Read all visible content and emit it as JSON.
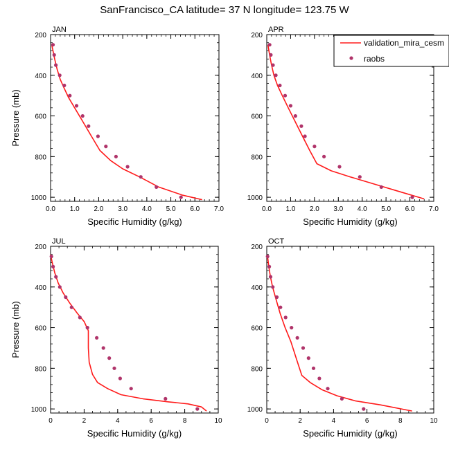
{
  "figure_title": "SanFrancisco_CA  latitude= 37 N longitude= 123.75 W",
  "colors": {
    "model": "#ff1a1a",
    "obs": "#b0346a",
    "axis": "#000000"
  },
  "legend": {
    "placement": "top-right of APR panel",
    "model_label": "validation_mira_cesm",
    "obs_label": "raobs"
  },
  "chart_data": [
    {
      "type": "line",
      "title": "JAN",
      "xlabel": "Specific Humidity (g/kg)",
      "ylabel": "Pressure (mb)",
      "xlim": [
        0,
        7
      ],
      "ylim": [
        1020,
        200
      ],
      "y_inverted": true,
      "xticks": [
        "0.0",
        "1.0",
        "2.0",
        "3.0",
        "4.0",
        "5.0",
        "6.0",
        "7.0"
      ],
      "yticks": [
        "200",
        "400",
        "600",
        "800",
        "1000"
      ],
      "series": [
        {
          "name": "validation_mira_cesm",
          "style": "line",
          "points": [
            [
              0.05,
              250
            ],
            [
              0.1,
              280
            ],
            [
              0.17,
              320
            ],
            [
              0.27,
              370
            ],
            [
              0.4,
              420
            ],
            [
              0.55,
              460
            ],
            [
              0.75,
              510
            ],
            [
              1.05,
              570
            ],
            [
              1.35,
              630
            ],
            [
              1.7,
              700
            ],
            [
              2.05,
              770
            ],
            [
              2.5,
              820
            ],
            [
              3.0,
              860
            ],
            [
              3.7,
              900
            ],
            [
              4.5,
              950
            ],
            [
              5.5,
              990
            ],
            [
              6.3,
              1012
            ]
          ]
        },
        {
          "name": "raobs",
          "style": "markers",
          "points": [
            [
              0.1,
              250
            ],
            [
              0.15,
              300
            ],
            [
              0.22,
              350
            ],
            [
              0.38,
              400
            ],
            [
              0.57,
              450
            ],
            [
              0.8,
              500
            ],
            [
              1.08,
              550
            ],
            [
              1.33,
              600
            ],
            [
              1.58,
              650
            ],
            [
              1.97,
              700
            ],
            [
              2.3,
              750
            ],
            [
              2.72,
              800
            ],
            [
              3.2,
              850
            ],
            [
              3.75,
              900
            ],
            [
              4.4,
              950
            ],
            [
              5.42,
              1000
            ]
          ]
        }
      ]
    },
    {
      "type": "line",
      "title": "APR",
      "xlabel": "Specific Humidity (g/kg)",
      "ylabel": "",
      "xlim": [
        0,
        7
      ],
      "ylim": [
        1020,
        200
      ],
      "y_inverted": true,
      "xticks": [
        "0.0",
        "1.0",
        "2.0",
        "3.0",
        "4.0",
        "5.0",
        "6.0",
        "7.0"
      ],
      "yticks": [
        "200",
        "400",
        "600",
        "800",
        "1000"
      ],
      "series": [
        {
          "name": "validation_mira_cesm",
          "style": "line",
          "points": [
            [
              0.05,
              250
            ],
            [
              0.12,
              300
            ],
            [
              0.2,
              350
            ],
            [
              0.3,
              400
            ],
            [
              0.45,
              450
            ],
            [
              0.65,
              500
            ],
            [
              0.9,
              560
            ],
            [
              1.2,
              630
            ],
            [
              1.5,
              700
            ],
            [
              1.8,
              770
            ],
            [
              2.1,
              835
            ],
            [
              2.7,
              870
            ],
            [
              3.5,
              900
            ],
            [
              4.5,
              935
            ],
            [
              5.5,
              970
            ],
            [
              6.6,
              1008
            ]
          ]
        },
        {
          "name": "raobs",
          "style": "markers",
          "points": [
            [
              0.12,
              250
            ],
            [
              0.17,
              300
            ],
            [
              0.26,
              350
            ],
            [
              0.38,
              400
            ],
            [
              0.55,
              450
            ],
            [
              0.77,
              500
            ],
            [
              1.0,
              550
            ],
            [
              1.2,
              600
            ],
            [
              1.45,
              650
            ],
            [
              1.6,
              700
            ],
            [
              2.0,
              750
            ],
            [
              2.4,
              800
            ],
            [
              3.05,
              850
            ],
            [
              3.9,
              900
            ],
            [
              4.8,
              950
            ],
            [
              6.1,
              1000
            ]
          ]
        }
      ]
    },
    {
      "type": "line",
      "title": "JUL",
      "xlabel": "Specific Humidity (g/kg)",
      "ylabel": "Pressure (mb)",
      "xlim": [
        0,
        10
      ],
      "ylim": [
        1020,
        200
      ],
      "y_inverted": true,
      "xticks": [
        "0",
        "2",
        "4",
        "6",
        "8",
        "10"
      ],
      "yticks": [
        "200",
        "400",
        "600",
        "800",
        "1000"
      ],
      "series": [
        {
          "name": "validation_mira_cesm",
          "style": "line",
          "points": [
            [
              0.0,
              240
            ],
            [
              0.1,
              280
            ],
            [
              0.25,
              330
            ],
            [
              0.45,
              380
            ],
            [
              0.75,
              430
            ],
            [
              1.15,
              480
            ],
            [
              1.6,
              530
            ],
            [
              2.0,
              570
            ],
            [
              2.25,
              615
            ],
            [
              2.25,
              700
            ],
            [
              2.3,
              770
            ],
            [
              2.5,
              830
            ],
            [
              2.8,
              870
            ],
            [
              3.4,
              900
            ],
            [
              4.2,
              930
            ],
            [
              5.5,
              950
            ],
            [
              7.0,
              965
            ],
            [
              8.2,
              975
            ],
            [
              9.0,
              990
            ],
            [
              9.3,
              1010
            ]
          ]
        },
        {
          "name": "raobs",
          "style": "markers",
          "points": [
            [
              0.05,
              250
            ],
            [
              0.15,
              300
            ],
            [
              0.32,
              350
            ],
            [
              0.55,
              400
            ],
            [
              0.9,
              450
            ],
            [
              1.25,
              500
            ],
            [
              1.75,
              550
            ],
            [
              2.2,
              600
            ],
            [
              2.75,
              650
            ],
            [
              3.15,
              700
            ],
            [
              3.5,
              750
            ],
            [
              3.8,
              800
            ],
            [
              4.15,
              850
            ],
            [
              4.8,
              900
            ],
            [
              6.85,
              950
            ],
            [
              8.75,
              1000
            ]
          ]
        }
      ]
    },
    {
      "type": "line",
      "title": "OCT",
      "xlabel": "Specific Humidity (g/kg)",
      "ylabel": "",
      "xlim": [
        0,
        10
      ],
      "ylim": [
        1020,
        200
      ],
      "y_inverted": true,
      "xticks": [
        "0",
        "2",
        "4",
        "6",
        "8",
        "10"
      ],
      "yticks": [
        "200",
        "400",
        "600",
        "800",
        "1000"
      ],
      "series": [
        {
          "name": "validation_mira_cesm",
          "style": "line",
          "points": [
            [
              0.05,
              250
            ],
            [
              0.12,
              300
            ],
            [
              0.22,
              350
            ],
            [
              0.35,
              400
            ],
            [
              0.55,
              460
            ],
            [
              0.8,
              530
            ],
            [
              1.1,
              600
            ],
            [
              1.45,
              670
            ],
            [
              1.8,
              760
            ],
            [
              2.1,
              835
            ],
            [
              2.6,
              870
            ],
            [
              3.3,
              905
            ],
            [
              4.2,
              935
            ],
            [
              5.3,
              960
            ],
            [
              6.8,
              980
            ],
            [
              8.7,
              1010
            ]
          ]
        },
        {
          "name": "raobs",
          "style": "markers",
          "points": [
            [
              0.05,
              250
            ],
            [
              0.15,
              300
            ],
            [
              0.23,
              350
            ],
            [
              0.36,
              400
            ],
            [
              0.6,
              450
            ],
            [
              0.82,
              500
            ],
            [
              1.13,
              550
            ],
            [
              1.48,
              600
            ],
            [
              1.83,
              650
            ],
            [
              2.18,
              700
            ],
            [
              2.5,
              750
            ],
            [
              2.8,
              800
            ],
            [
              3.15,
              850
            ],
            [
              3.65,
              900
            ],
            [
              4.5,
              950
            ],
            [
              5.8,
              1000
            ]
          ]
        }
      ]
    }
  ]
}
